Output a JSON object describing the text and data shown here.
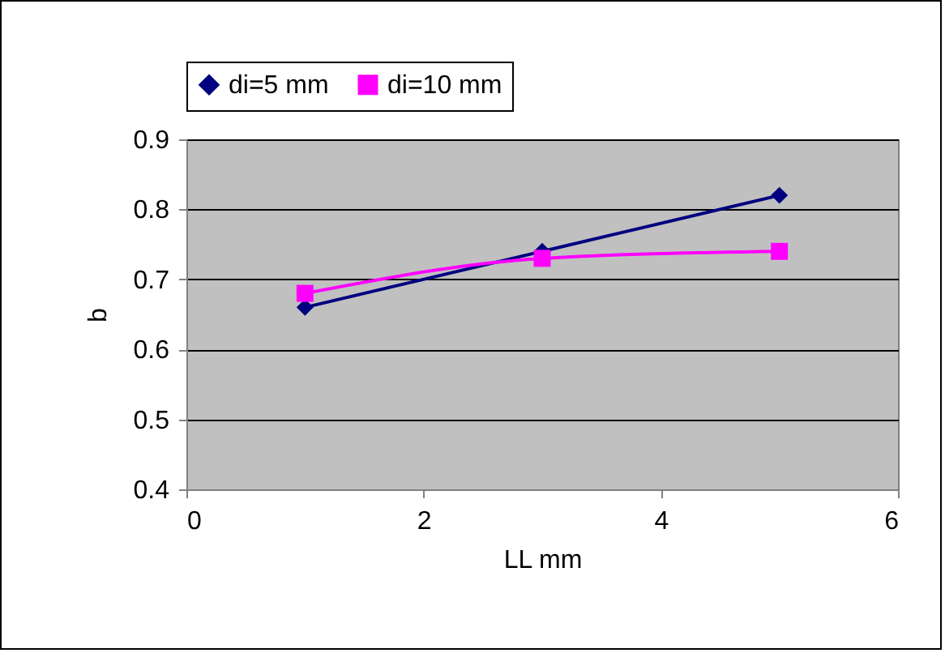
{
  "chart_data": {
    "type": "line",
    "xlabel": "LL mm",
    "ylabel": "b",
    "x": [
      1,
      3,
      5
    ],
    "series": [
      {
        "name": "di=5 mm",
        "color": "#000080",
        "marker": "diamond",
        "values": [
          0.66,
          0.74,
          0.82
        ]
      },
      {
        "name": "di=10 mm",
        "color": "#ff00ff",
        "marker": "square",
        "values": [
          0.68,
          0.73,
          0.74
        ]
      }
    ],
    "xlim": [
      0,
      6
    ],
    "xticks": [
      0,
      2,
      4,
      6
    ],
    "ylim": [
      0.4,
      0.9
    ],
    "yticks": [
      0.4,
      0.5,
      0.6,
      0.7,
      0.8,
      0.9
    ],
    "grid": "y",
    "legend": "top"
  }
}
